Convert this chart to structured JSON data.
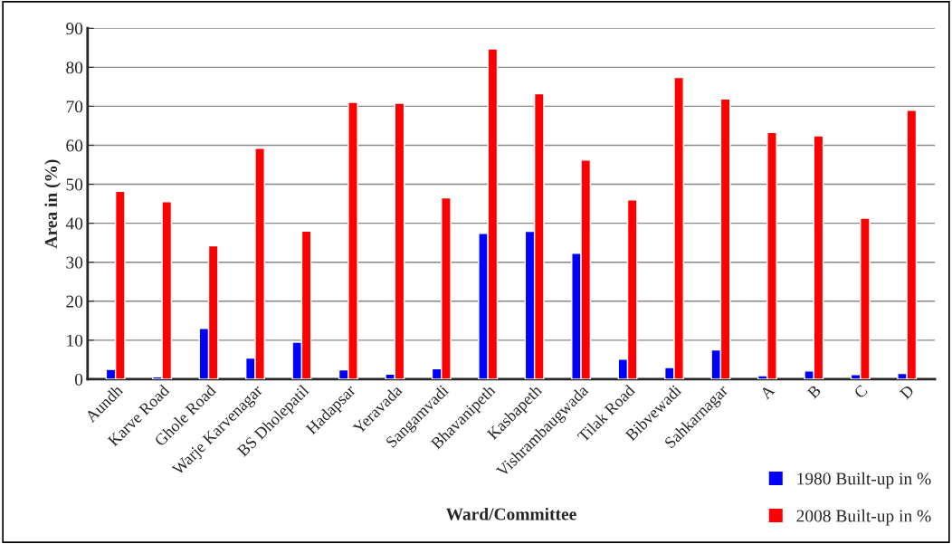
{
  "chart_data": {
    "type": "bar",
    "xlabel": "Ward/Committee",
    "ylabel": "Area in (%)",
    "categories": [
      "Aundh",
      "Karve Road",
      "Ghole Road",
      "Warje Karvenagar",
      "BS Dholepatil",
      "Hadapsar",
      "Yeravada",
      "Sangamvadi",
      "Bhavanipeth",
      "Kasbapeth",
      "Vishrambaugwada",
      "Tilak Road",
      "Bibvewadi",
      "Sahkarnagar",
      "A",
      "B",
      "C",
      "D"
    ],
    "series": [
      {
        "name": "1980 Built-up in %",
        "color": "#0000ff",
        "values": [
          2.5,
          0.6,
          13,
          5.4,
          9.5,
          2.4,
          1.3,
          2.7,
          37.4,
          37.9,
          32.3,
          5.1,
          3,
          7.5,
          0.9,
          2.1,
          1.2,
          1.5
        ]
      },
      {
        "name": "2008 Built-up in %",
        "color": "#ff0000",
        "values": [
          48.2,
          45.5,
          34.2,
          59.2,
          38,
          71,
          70.8,
          46.5,
          84.7,
          73.2,
          56.2,
          46,
          77.4,
          71.9,
          63.3,
          62.4,
          41.3,
          69
        ]
      }
    ],
    "ylim": [
      0,
      90
    ],
    "yticks": [
      0,
      10,
      20,
      30,
      40,
      50,
      60,
      70,
      80,
      90
    ],
    "grid": "y",
    "legend": "bottom right"
  }
}
